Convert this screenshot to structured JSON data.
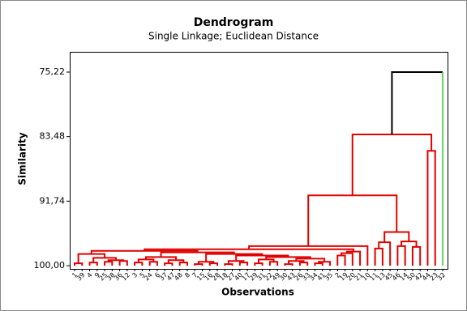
{
  "chart_data": {
    "type": "dendrogram",
    "title": "Dendrogram",
    "subtitle": "Single Linkage; Euclidean Distance",
    "xlabel": "Observations",
    "ylabel": "Similarity",
    "ylim": [
      100.41,
      72.63
    ],
    "yticks": [
      {
        "value": 75.22,
        "label": "75,22"
      },
      {
        "value": 83.48,
        "label": "83,48"
      },
      {
        "value": 91.74,
        "label": "91,74"
      },
      {
        "value": 100,
        "label": "100,00"
      }
    ],
    "leaves": [
      "1",
      "39",
      "4",
      "9",
      "25",
      "38",
      "36",
      "12",
      "3",
      "5",
      "24",
      "6",
      "37",
      "47",
      "48",
      "8",
      "7",
      "15",
      "16",
      "28",
      "18",
      "27",
      "40",
      "17",
      "29",
      "31",
      "22",
      "49",
      "30",
      "43",
      "26",
      "33",
      "34",
      "41",
      "35",
      "2",
      "19",
      "20",
      "21",
      "10",
      "11",
      "13",
      "45",
      "46",
      "14",
      "50",
      "42",
      "44",
      "23",
      "32"
    ],
    "merges": [
      [
        0,
        1,
        99.7
      ],
      [
        2,
        3,
        99.6
      ],
      [
        4,
        5,
        99.5
      ],
      [
        6,
        7,
        99.4
      ],
      [
        52,
        53,
        99.3
      ],
      [
        51,
        54,
        99.0
      ],
      [
        50,
        55,
        98.5
      ],
      [
        8,
        9,
        99.6
      ],
      [
        10,
        11,
        99.5
      ],
      [
        57,
        58,
        99.2
      ],
      [
        12,
        13,
        99.7
      ],
      [
        14,
        15,
        99.6
      ],
      [
        60,
        61,
        99.3
      ],
      [
        59,
        62,
        98.9
      ],
      [
        16,
        17,
        99.8
      ],
      [
        18,
        19,
        99.7
      ],
      [
        64,
        65,
        99.5
      ],
      [
        20,
        21,
        99.8
      ],
      [
        22,
        23,
        99.6
      ],
      [
        67,
        68,
        99.4
      ],
      [
        24,
        25,
        99.7
      ],
      [
        26,
        27,
        99.5
      ],
      [
        70,
        71,
        99.2
      ],
      [
        28,
        29,
        99.8
      ],
      [
        30,
        31,
        99.6
      ],
      [
        73,
        74,
        99.4
      ],
      [
        32,
        33,
        99.7
      ],
      [
        76,
        34,
        99.5
      ],
      [
        75,
        77,
        99.1
      ],
      [
        72,
        78,
        98.9
      ],
      [
        69,
        79,
        98.7
      ],
      [
        66,
        80,
        98.5
      ],
      [
        63,
        81,
        98.3
      ],
      [
        56,
        82,
        98.1
      ],
      [
        35,
        36,
        98.7
      ],
      [
        84,
        37,
        98.4
      ],
      [
        85,
        38,
        98.2
      ],
      [
        83,
        86,
        97.9
      ],
      [
        87,
        39,
        97.5
      ],
      [
        40,
        41,
        97.8
      ],
      [
        89,
        42,
        97.0
      ],
      [
        43,
        44,
        97.5
      ],
      [
        45,
        46,
        97.6
      ],
      [
        91,
        92,
        96.9
      ],
      [
        90,
        93,
        95.7
      ],
      [
        88,
        94,
        91.0
      ],
      [
        47,
        48,
        85.3
      ],
      [
        95,
        96,
        83.2
      ],
      [
        97,
        49,
        75.22
      ]
    ],
    "colors": {
      "cluster": "#e00000",
      "root": "#000000",
      "singleton": "#33cc33"
    }
  }
}
